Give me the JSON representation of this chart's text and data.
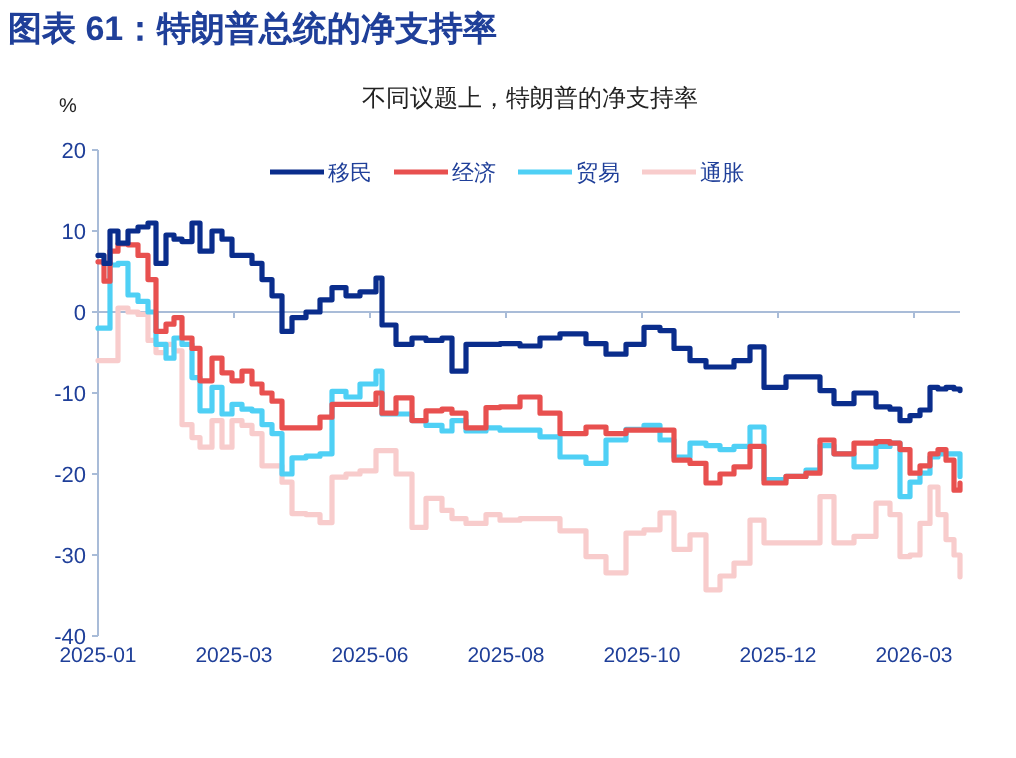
{
  "chart_data": {
    "type": "step",
    "title": "图表 61：特朗普总统的净支持率",
    "subtitle": "不同议题上，特朗普的净支持率",
    "ylabel": "%",
    "x": [
      "2025-01-20",
      "2025-01-23",
      "2025-01-26",
      "2025-01-30",
      "2025-02-04",
      "2025-02-09",
      "2025-02-14",
      "2025-02-18",
      "2025-02-23",
      "2025-02-27",
      "2025-03-03",
      "2025-03-08",
      "2025-03-12",
      "2025-03-18",
      "2025-03-23",
      "2025-03-28",
      "2025-04-02",
      "2025-04-07",
      "2025-04-12",
      "2025-04-17",
      "2025-04-22",
      "2025-04-27",
      "2025-05-04",
      "2025-05-11",
      "2025-05-17",
      "2025-05-24",
      "2025-05-31",
      "2025-06-08",
      "2025-06-11",
      "2025-06-18",
      "2025-06-26",
      "2025-07-03",
      "2025-07-11",
      "2025-07-16",
      "2025-07-23",
      "2025-08-02",
      "2025-08-09",
      "2025-08-19",
      "2025-08-29",
      "2025-09-08",
      "2025-09-21",
      "2025-10-01",
      "2025-10-11",
      "2025-10-20",
      "2025-10-28",
      "2025-11-04",
      "2025-11-12",
      "2025-11-20",
      "2025-11-27",
      "2025-12-04",
      "2025-12-12",
      "2025-12-19",
      "2025-12-30",
      "2026-01-09",
      "2026-01-16",
      "2026-01-23",
      "2026-02-02",
      "2026-02-13",
      "2026-02-20",
      "2026-02-25",
      "2026-03-02",
      "2026-03-07",
      "2026-03-12",
      "2026-03-16",
      "2026-03-20",
      "2026-03-24",
      "2026-03-27"
    ],
    "series": [
      {
        "name": "移民",
        "color": "#0a2d8c",
        "values": [
          7,
          6,
          10,
          8.5,
          10,
          10.5,
          11,
          6,
          9.5,
          9,
          8.7,
          11,
          7.5,
          10,
          9,
          7,
          7,
          6,
          4,
          2,
          -2.4,
          -0.7,
          0,
          1.5,
          3,
          2,
          2.5,
          4.2,
          -1.6,
          -4,
          -3.2,
          -3.5,
          -3.2,
          -7.3,
          -4,
          -4,
          -3.9,
          -4.2,
          -3.2,
          -2.7,
          -3.9,
          -5.2,
          -4,
          -1.9,
          -2.3,
          -4.5,
          -6,
          -6.8,
          -6.8,
          -6,
          -4.3,
          -9.3,
          -8,
          -8,
          -9.7,
          -11.3,
          -10,
          -11.7,
          -12,
          -13.4,
          -12.8,
          -12.1,
          -9.3,
          -9.5,
          -9.3,
          -9.5,
          -9.7
        ]
      },
      {
        "name": "经济",
        "color": "#e8504f",
        "values": [
          6.2,
          3.8,
          7.5,
          8.4,
          8.3,
          7,
          4,
          -2.4,
          -1.5,
          -0.7,
          -3.2,
          -4.5,
          -8.5,
          -5.7,
          -7.5,
          -8.5,
          -7.3,
          -8.9,
          -10,
          -11,
          -14.3,
          -14.3,
          -14.3,
          -13,
          -11.4,
          -11.4,
          -11.4,
          -10,
          -12.5,
          -10.6,
          -13.4,
          -12.2,
          -12,
          -12.5,
          -14.3,
          -11.8,
          -11.7,
          -10.5,
          -12.5,
          -15,
          -14.2,
          -15,
          -14.6,
          -14.6,
          -14.6,
          -18.3,
          -18.7,
          -21.1,
          -20,
          -19.1,
          -16.6,
          -21.1,
          -20.3,
          -19.9,
          -15.8,
          -17.5,
          -16.2,
          -16,
          -16.2,
          -17,
          -19.9,
          -19,
          -17.5,
          -17,
          -18.3,
          -22,
          -21.1
        ]
      },
      {
        "name": "贸易",
        "color": "#4fd0f5",
        "values": [
          -2,
          -2,
          5.8,
          6,
          2.1,
          1.3,
          0,
          -4,
          -5.7,
          -3.2,
          -4,
          -8.1,
          -12.2,
          -9.3,
          -12.6,
          -11.4,
          -12,
          -12.2,
          -13.9,
          -15,
          -20,
          -18,
          -17.8,
          -17.5,
          -9.8,
          -10.5,
          -8.9,
          -7.3,
          -12.6,
          -12.6,
          -13.4,
          -14,
          -14.7,
          -13.4,
          -14.7,
          -14.3,
          -14.6,
          -14.6,
          -15.4,
          -17.9,
          -18.7,
          -15.8,
          -14.5,
          -14,
          -15.8,
          -17.9,
          -16.2,
          -16.5,
          -17,
          -16.6,
          -14.2,
          -20.7,
          -20.3,
          -19.5,
          -16.5,
          -17.5,
          -19.1,
          -16.6,
          -16.2,
          -22.8,
          -21,
          -19.9,
          -17.9,
          -17.5,
          -17.5,
          -17.5,
          -20.3
        ]
      },
      {
        "name": "通胀",
        "color": "#f8cccc",
        "values": [
          -6,
          -6,
          -6,
          0.5,
          0,
          -0.3,
          -3.5,
          -5,
          -4,
          -4.8,
          -13.9,
          -15.5,
          -16.7,
          -13.4,
          -16.7,
          -13.4,
          -14,
          -15,
          -19,
          -19,
          -21,
          -24.9,
          -25,
          -26,
          -20.4,
          -20,
          -19.6,
          -17.1,
          -17.1,
          -20,
          -26.6,
          -23,
          -24.5,
          -25.5,
          -26.1,
          -25,
          -25.7,
          -25.5,
          -25.5,
          -27,
          -30.2,
          -32.2,
          -27.3,
          -26.9,
          -24.8,
          -29.3,
          -27.5,
          -34.3,
          -32.6,
          -31,
          -25.7,
          -28.5,
          -28.5,
          -28.5,
          -22.8,
          -28.5,
          -27.7,
          -23.6,
          -25,
          -30.2,
          -30,
          -26.1,
          -21.6,
          -25,
          -28.1,
          -30,
          -32.7
        ]
      }
    ],
    "xlim": [
      "2025-01-20",
      "2026-03-27"
    ],
    "xticks": [
      {
        "value": "2025-01-20",
        "label": "2025-01"
      },
      {
        "value": "2025-03-29",
        "label": "2025-03"
      },
      {
        "value": "2025-06-05",
        "label": "2025-06"
      },
      {
        "value": "2025-08-12",
        "label": "2025-08"
      },
      {
        "value": "2025-10-19",
        "label": "2025-10"
      },
      {
        "value": "2025-12-26",
        "label": "2025-12"
      },
      {
        "value": "2026-03-04",
        "label": "2026-03"
      }
    ],
    "ylim": [
      -40,
      20
    ],
    "yticks": [
      -40,
      -30,
      -20,
      -10,
      0,
      10,
      20
    ],
    "ref_lines": [
      {
        "axis": "y",
        "value": 0,
        "color": "#a9bcd8"
      }
    ],
    "grid": false,
    "legend": "top right",
    "marker": "none",
    "line_style": "solid"
  }
}
